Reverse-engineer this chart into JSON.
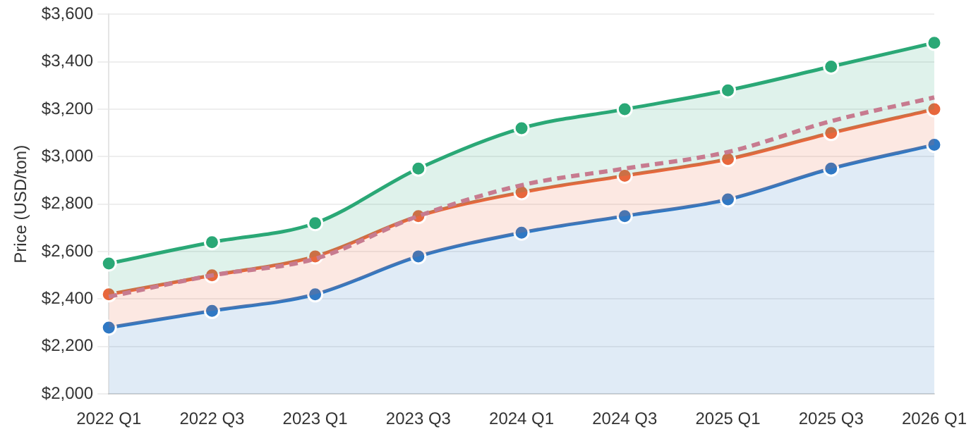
{
  "chart_data": {
    "type": "area",
    "ylabel": "Price (USD/ton)",
    "categories": [
      "2022 Q1",
      "2022 Q3",
      "2023 Q1",
      "2023 Q3",
      "2024 Q1",
      "2024 Q3",
      "2025 Q1",
      "2025 Q3",
      "2026 Q1"
    ],
    "series": [
      {
        "color": "#2f78c4",
        "values": [
          2280,
          2350,
          2420,
          2580,
          2680,
          2750,
          2820,
          2950,
          3050
        ]
      },
      {
        "color": "#e8673c",
        "values": [
          2420,
          2500,
          2580,
          2750,
          2850,
          2920,
          2990,
          3100,
          3200
        ]
      },
      {
        "color": "#2aa876",
        "values": [
          2550,
          2640,
          2720,
          2950,
          3120,
          3200,
          3280,
          3380,
          3480
        ]
      },
      {
        "type": "line",
        "line_style": "dashed",
        "marker": "none",
        "color": "#c77b8f",
        "values": [
          2410,
          2500,
          2570,
          2750,
          2880,
          2950,
          3020,
          3150,
          3250
        ]
      }
    ],
    "ylim": [
      2000,
      3600
    ],
    "yticks": [
      {
        "value": 2000,
        "label": "$2,000"
      },
      {
        "value": 2200,
        "label": "$2,200"
      },
      {
        "value": 2400,
        "label": "$2,400"
      },
      {
        "value": 2600,
        "label": "$2,600"
      },
      {
        "value": 2800,
        "label": "$2,800"
      },
      {
        "value": 3000,
        "label": "$3,000"
      },
      {
        "value": 3200,
        "label": "$3,200"
      },
      {
        "value": 3400,
        "label": "$3,400"
      },
      {
        "value": 3600,
        "label": "$3,600"
      }
    ],
    "grid": "y",
    "marker": "circle"
  }
}
